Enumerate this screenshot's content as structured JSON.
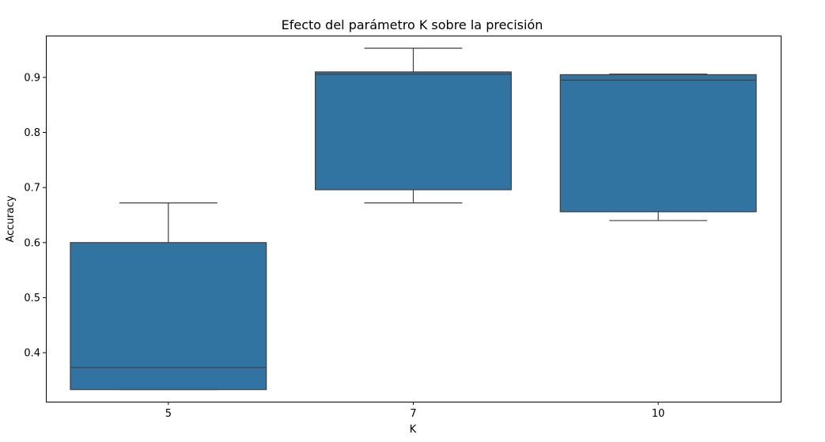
{
  "chart_data": {
    "type": "box",
    "title": "Efecto del parámetro K sobre la precisión",
    "xlabel": "K",
    "ylabel": "Accuracy",
    "categories": [
      "5",
      "7",
      "10"
    ],
    "boxes": [
      {
        "category": "5",
        "whisker_low": 0.333,
        "q1": 0.333,
        "median": 0.373,
        "q3": 0.6,
        "whisker_high": 0.672
      },
      {
        "category": "7",
        "whisker_low": 0.672,
        "q1": 0.696,
        "median": 0.906,
        "q3": 0.91,
        "whisker_high": 0.953
      },
      {
        "category": "10",
        "whisker_low": 0.64,
        "q1": 0.656,
        "median": 0.895,
        "q3": 0.905,
        "whisker_high": 0.906
      }
    ],
    "yticks": [
      0.4,
      0.5,
      0.6,
      0.7,
      0.8,
      0.9
    ],
    "ytick_labels": [
      "0.4",
      "0.5",
      "0.6",
      "0.7",
      "0.8",
      "0.9"
    ],
    "ylim": [
      0.311,
      0.976
    ],
    "grid": false,
    "colors": {
      "box_fill": "#3274a1",
      "line": "#3f3f3f"
    }
  }
}
